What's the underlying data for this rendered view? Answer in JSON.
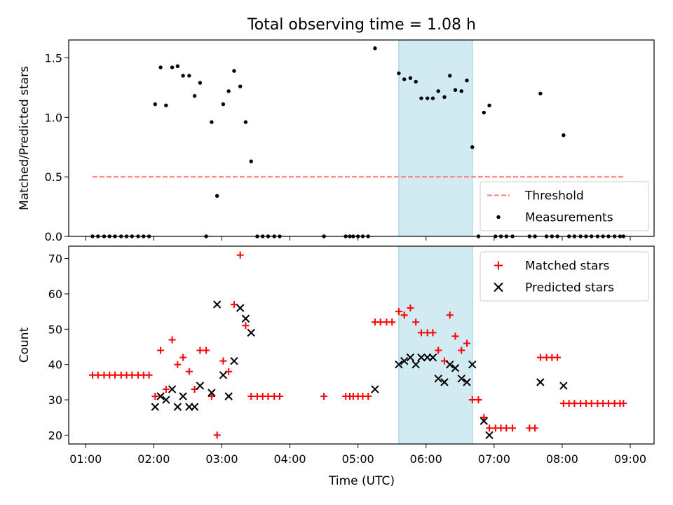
{
  "chart_data": {
    "title": "Total observing time = 1.08 h",
    "x_axis": {
      "label": "Time (UTC)",
      "unit": "hours",
      "range": [
        0.75,
        9.35
      ],
      "tick_values": [
        1,
        2,
        3,
        4,
        5,
        6,
        7,
        8,
        9
      ],
      "tick_labels": [
        "01:00",
        "02:00",
        "03:00",
        "04:00",
        "05:00",
        "06:00",
        "07:00",
        "08:00",
        "09:00"
      ]
    },
    "highlight_span": {
      "start": 5.6,
      "end": 6.68,
      "color": "#add8e6"
    },
    "panels": [
      {
        "type": "scatter",
        "ylabel": "Matched/Predicted stars",
        "ylim": [
          0.0,
          1.65
        ],
        "y_tick_values": [
          0.0,
          0.5,
          1.0,
          1.5
        ],
        "y_tick_labels": [
          "0.0",
          "0.5",
          "1.0",
          "1.5"
        ],
        "legend_position": "lower-right",
        "threshold": {
          "name": "Threshold",
          "y": 0.5,
          "x_start": 1.1,
          "x_end": 8.9,
          "color": "#ff7f7f"
        },
        "series": [
          {
            "name": "Measurements",
            "marker": "dot",
            "color": "#000000",
            "x": [
              1.1,
              1.18,
              1.27,
              1.35,
              1.43,
              1.52,
              1.6,
              1.68,
              1.77,
              1.85,
              1.93,
              2.02,
              2.1,
              2.18,
              2.27,
              2.35,
              2.43,
              2.52,
              2.6,
              2.68,
              2.77,
              2.85,
              2.93,
              3.02,
              3.1,
              3.18,
              3.27,
              3.35,
              3.43,
              3.52,
              3.6,
              3.68,
              3.77,
              3.85,
              4.5,
              4.82,
              4.88,
              4.93,
              5.0,
              5.07,
              5.15,
              5.25,
              5.6,
              5.68,
              5.77,
              5.85,
              5.93,
              6.02,
              6.1,
              6.18,
              6.27,
              6.35,
              6.43,
              6.52,
              6.6,
              6.68,
              6.77,
              6.85,
              6.93,
              7.02,
              7.1,
              7.18,
              7.27,
              7.52,
              7.6,
              7.68,
              7.77,
              7.85,
              7.93,
              8.02,
              8.1,
              8.18,
              8.27,
              8.35,
              8.43,
              8.52,
              8.6,
              8.68,
              8.77,
              8.85,
              8.9
            ],
            "y": [
              0.0,
              0.0,
              0.0,
              0.0,
              0.0,
              0.0,
              0.0,
              0.0,
              0.0,
              0.0,
              0.0,
              1.11,
              1.42,
              1.1,
              1.42,
              1.43,
              1.35,
              1.35,
              1.18,
              1.29,
              0.0,
              0.96,
              0.34,
              1.11,
              1.22,
              1.39,
              1.26,
              0.96,
              0.63,
              0.0,
              0.0,
              0.0,
              0.0,
              0.0,
              0.0,
              0.0,
              0.0,
              0.0,
              0.0,
              0.0,
              0.0,
              1.58,
              1.37,
              1.32,
              1.33,
              1.3,
              1.16,
              1.16,
              1.16,
              1.22,
              1.17,
              1.35,
              1.23,
              1.22,
              1.31,
              0.75,
              0.0,
              1.04,
              1.1,
              0.0,
              0.0,
              0.0,
              0.0,
              0.0,
              0.0,
              1.2,
              0.0,
              0.0,
              0.0,
              0.85,
              0.0,
              0.0,
              0.0,
              0.0,
              0.0,
              0.0,
              0.0,
              0.0,
              0.0,
              0.0,
              0.0
            ]
          }
        ]
      },
      {
        "type": "scatter",
        "ylabel": "Count",
        "ylim": [
          17.5,
          73.5
        ],
        "y_tick_values": [
          20,
          30,
          40,
          50,
          60,
          70
        ],
        "y_tick_labels": [
          "20",
          "30",
          "40",
          "50",
          "60",
          "70"
        ],
        "legend_position": "upper-right",
        "series": [
          {
            "name": "Matched stars",
            "marker": "plus",
            "color": "#ff0000",
            "x": [
              1.1,
              1.18,
              1.27,
              1.35,
              1.43,
              1.52,
              1.6,
              1.68,
              1.77,
              1.85,
              1.93,
              2.02,
              2.1,
              2.18,
              2.27,
              2.35,
              2.43,
              2.52,
              2.6,
              2.68,
              2.77,
              2.85,
              2.93,
              3.02,
              3.1,
              3.18,
              3.27,
              3.35,
              3.43,
              3.52,
              3.6,
              3.68,
              3.77,
              3.85,
              4.5,
              4.82,
              4.88,
              4.93,
              5.0,
              5.07,
              5.15,
              5.25,
              5.33,
              5.42,
              5.5,
              5.6,
              5.68,
              5.77,
              5.85,
              5.93,
              6.02,
              6.1,
              6.18,
              6.27,
              6.35,
              6.43,
              6.52,
              6.6,
              6.68,
              6.77,
              6.85,
              6.93,
              7.02,
              7.1,
              7.18,
              7.27,
              7.52,
              7.6,
              7.68,
              7.77,
              7.85,
              7.93,
              8.02,
              8.1,
              8.18,
              8.27,
              8.35,
              8.43,
              8.52,
              8.6,
              8.68,
              8.77,
              8.85,
              8.9
            ],
            "y": [
              37,
              37,
              37,
              37,
              37,
              37,
              37,
              37,
              37,
              37,
              37,
              31,
              44,
              33,
              47,
              40,
              42,
              38,
              33,
              44,
              44,
              31,
              20,
              41,
              38,
              57,
              71,
              51,
              31,
              31,
              31,
              31,
              31,
              31,
              31,
              31,
              31,
              31,
              31,
              31,
              31,
              52,
              52,
              52,
              52,
              55,
              54,
              56,
              52,
              49,
              49,
              49,
              44,
              41,
              54,
              48,
              44,
              46,
              30,
              30,
              25,
              22,
              22,
              22,
              22,
              22,
              22,
              22,
              42,
              42,
              42,
              42,
              29,
              29,
              29,
              29,
              29,
              29,
              29,
              29,
              29,
              29,
              29,
              29
            ]
          },
          {
            "name": "Predicted stars",
            "marker": "x",
            "color": "#000000",
            "x": [
              2.02,
              2.1,
              2.18,
              2.27,
              2.35,
              2.43,
              2.52,
              2.6,
              2.68,
              2.85,
              2.93,
              3.02,
              3.1,
              3.18,
              3.27,
              3.35,
              3.43,
              5.25,
              5.6,
              5.68,
              5.77,
              5.85,
              5.93,
              6.02,
              6.1,
              6.18,
              6.27,
              6.35,
              6.43,
              6.52,
              6.6,
              6.68,
              6.85,
              6.93,
              7.68,
              8.02
            ],
            "y": [
              28,
              31,
              30,
              33,
              28,
              31,
              28,
              28,
              34,
              32,
              57,
              37,
              31,
              41,
              56,
              53,
              49,
              33,
              40,
              41,
              42,
              40,
              42,
              42,
              42,
              36,
              35,
              40,
              39,
              36,
              35,
              40,
              24,
              20,
              35,
              34
            ]
          }
        ]
      }
    ]
  }
}
